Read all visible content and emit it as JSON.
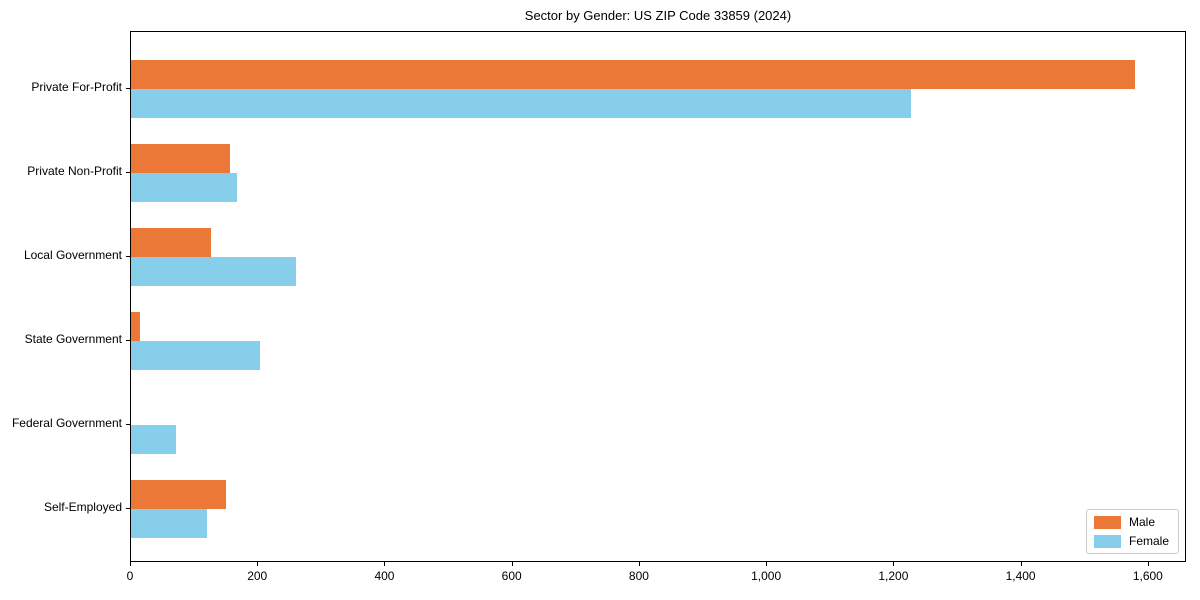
{
  "title": "Sector by Gender: US ZIP Code 33859 (2024)",
  "chart_data": {
    "type": "bar",
    "orientation": "horizontal",
    "title": "Sector by Gender: US ZIP Code 33859 (2024)",
    "categories": [
      "Private For-Profit",
      "Private Non-Profit",
      "Local Government",
      "State Government",
      "Federal Government",
      "Self-Employed"
    ],
    "series": [
      {
        "name": "Male",
        "color": "#ec7837",
        "values": [
          1578,
          156,
          125,
          14,
          0,
          150
        ]
      },
      {
        "name": "Female",
        "color": "#87ceeb",
        "values": [
          1226,
          166,
          259,
          203,
          70,
          120
        ]
      }
    ],
    "xlabel": "",
    "ylabel": "",
    "xlim": [
      0,
      1660
    ],
    "xticks": {
      "values": [
        0,
        200,
        400,
        600,
        800,
        1000,
        1200,
        1400,
        1600
      ],
      "labels": [
        "0",
        "200",
        "400",
        "600",
        "800",
        "1,000",
        "1,200",
        "1,400",
        "1,600"
      ]
    },
    "grid": false,
    "legend": {
      "position": "lower right"
    }
  }
}
